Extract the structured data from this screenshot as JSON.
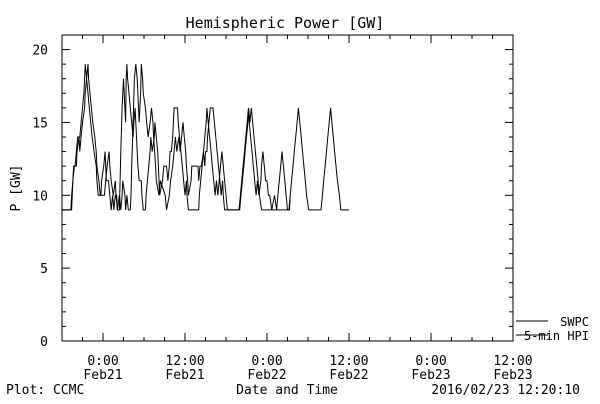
{
  "footer": {
    "plot_credit": "Plot: CCMC",
    "timestamp": "2016/02/23 12:20:10"
  },
  "chart_data": {
    "type": "line",
    "title": "Hemispheric Power [GW]",
    "xlabel": "Date and Time",
    "ylabel": "P [GW]",
    "x_unit": "hours since 2016-02-20 00:00",
    "xlim": [
      18,
      84
    ],
    "ylim": [
      0,
      21
    ],
    "y_ticks": [
      0,
      5,
      10,
      15,
      20
    ],
    "x_ticks": [
      {
        "x": 24,
        "time": "0:00",
        "date": "Feb21"
      },
      {
        "x": 36,
        "time": "12:00",
        "date": "Feb21"
      },
      {
        "x": 48,
        "time": "0:00",
        "date": "Feb22"
      },
      {
        "x": 60,
        "time": "12:00",
        "date": "Feb22"
      },
      {
        "x": 72,
        "time": "0:00",
        "date": "Feb23"
      },
      {
        "x": 84,
        "time": "12:00",
        "date": "Feb23"
      }
    ],
    "grid": false,
    "legend_position": "bottom-right",
    "legend": [
      {
        "label": "SWPC",
        "color": "#000000"
      },
      {
        "label": "5-min HPI",
        "color": "#000000"
      }
    ],
    "series": [
      {
        "name": "SWPC",
        "color": "#000000",
        "points": [
          [
            18.0,
            9
          ],
          [
            19.3,
            9
          ],
          [
            19.4,
            10
          ],
          [
            19.6,
            11
          ],
          [
            19.8,
            12
          ],
          [
            20.1,
            12
          ],
          [
            20.2,
            13
          ],
          [
            20.5,
            14
          ],
          [
            20.6,
            13
          ],
          [
            20.8,
            14
          ],
          [
            21.0,
            15
          ],
          [
            21.3,
            16
          ],
          [
            21.4,
            17
          ],
          [
            21.6,
            18
          ],
          [
            21.8,
            19
          ],
          [
            21.9,
            18
          ],
          [
            22.1,
            17
          ],
          [
            22.3,
            16
          ],
          [
            22.5,
            15
          ],
          [
            22.8,
            14
          ],
          [
            23.0,
            13
          ],
          [
            23.1,
            12
          ],
          [
            23.4,
            11
          ],
          [
            23.6,
            10
          ],
          [
            24.2,
            10
          ],
          [
            24.4,
            11
          ],
          [
            24.6,
            12
          ],
          [
            24.9,
            13
          ],
          [
            25.0,
            12
          ],
          [
            25.2,
            11
          ],
          [
            25.5,
            10
          ],
          [
            25.8,
            11
          ],
          [
            25.9,
            10
          ],
          [
            26.1,
            9
          ],
          [
            26.4,
            10
          ],
          [
            26.6,
            9
          ],
          [
            26.8,
            10
          ],
          [
            26.9,
            11
          ],
          [
            27.2,
            10
          ],
          [
            27.3,
            9
          ],
          [
            27.5,
            10
          ],
          [
            27.7,
            9
          ],
          [
            28.0,
            9
          ],
          [
            28.1,
            10
          ],
          [
            28.2,
            12
          ],
          [
            28.4,
            15
          ],
          [
            28.6,
            18
          ],
          [
            28.8,
            19
          ],
          [
            29.0,
            18
          ],
          [
            29.2,
            16
          ],
          [
            29.3,
            15
          ],
          [
            29.5,
            17
          ],
          [
            29.6,
            19
          ],
          [
            29.8,
            18
          ],
          [
            29.9,
            17
          ],
          [
            30.2,
            16
          ],
          [
            30.4,
            15
          ],
          [
            30.6,
            14
          ],
          [
            30.9,
            15
          ],
          [
            31.1,
            16
          ],
          [
            31.3,
            15
          ],
          [
            31.4,
            14
          ],
          [
            31.7,
            12
          ],
          [
            31.8,
            11
          ],
          [
            32.2,
            10
          ],
          [
            32.4,
            11
          ],
          [
            33.1,
            10
          ],
          [
            33.3,
            9
          ],
          [
            33.7,
            10
          ],
          [
            33.9,
            11
          ],
          [
            34.2,
            12
          ],
          [
            34.4,
            13
          ],
          [
            34.6,
            14
          ],
          [
            34.8,
            13
          ],
          [
            35.1,
            14
          ],
          [
            35.3,
            13
          ],
          [
            35.5,
            14
          ],
          [
            35.7,
            15
          ],
          [
            35.9,
            14
          ],
          [
            36.1,
            13
          ],
          [
            36.2,
            12
          ],
          [
            36.4,
            11
          ],
          [
            36.5,
            10
          ],
          [
            36.9,
            11
          ],
          [
            37.0,
            12
          ],
          [
            37.9,
            12
          ],
          [
            38.0,
            11
          ],
          [
            38.2,
            12
          ],
          [
            38.4,
            12
          ],
          [
            38.7,
            13
          ],
          [
            38.9,
            12
          ],
          [
            39.0,
            13
          ],
          [
            39.2,
            13
          ],
          [
            39.3,
            14
          ],
          [
            39.5,
            15
          ],
          [
            39.7,
            16
          ],
          [
            40.1,
            16
          ],
          [
            40.3,
            15
          ],
          [
            40.5,
            14
          ],
          [
            40.7,
            13
          ],
          [
            40.9,
            12
          ],
          [
            41.1,
            11
          ],
          [
            41.3,
            10
          ],
          [
            41.5,
            11
          ],
          [
            41.6,
            10
          ],
          [
            41.8,
            9
          ],
          [
            42.0,
            9
          ],
          [
            43.9,
            9
          ],
          [
            44.1,
            10
          ],
          [
            44.3,
            11
          ],
          [
            44.5,
            12
          ],
          [
            44.7,
            13
          ],
          [
            44.9,
            14
          ],
          [
            45.1,
            15
          ],
          [
            45.3,
            16
          ],
          [
            45.4,
            15
          ],
          [
            45.6,
            14
          ],
          [
            45.8,
            13
          ],
          [
            46.0,
            12
          ],
          [
            46.2,
            11
          ],
          [
            46.4,
            10
          ],
          [
            46.6,
            11
          ],
          [
            46.8,
            10
          ],
          [
            47.1,
            11
          ],
          [
            47.2,
            12
          ],
          [
            47.4,
            13
          ],
          [
            47.6,
            12
          ],
          [
            47.8,
            11
          ],
          [
            48.0,
            11
          ],
          [
            48.2,
            10
          ],
          [
            48.4,
            10
          ],
          [
            48.7,
            9
          ],
          [
            49.1,
            10
          ],
          [
            49.4,
            9
          ],
          [
            51.2,
            9
          ],
          [
            51.4,
            10
          ],
          [
            51.6,
            11
          ],
          [
            51.8,
            12
          ],
          [
            52.0,
            13
          ],
          [
            52.2,
            14
          ],
          [
            52.4,
            15
          ],
          [
            52.6,
            16
          ],
          [
            52.8,
            15
          ],
          [
            53.0,
            14
          ],
          [
            53.2,
            13
          ],
          [
            53.4,
            12
          ],
          [
            53.6,
            11
          ],
          [
            53.8,
            10
          ],
          [
            54.1,
            9
          ],
          [
            54.4,
            9
          ],
          [
            55.9,
            9
          ],
          [
            56.1,
            10
          ],
          [
            56.3,
            11
          ],
          [
            56.5,
            12
          ],
          [
            56.7,
            13
          ],
          [
            56.9,
            14
          ],
          [
            57.1,
            15
          ],
          [
            57.3,
            16
          ],
          [
            57.5,
            15
          ],
          [
            57.7,
            14
          ],
          [
            57.9,
            13
          ],
          [
            58.1,
            12
          ],
          [
            58.3,
            11
          ],
          [
            58.6,
            10
          ],
          [
            58.8,
            9
          ],
          [
            60.0,
            9
          ]
        ]
      },
      {
        "name": "5-min HPI",
        "color": "#000000",
        "points": [
          [
            18.0,
            9
          ],
          [
            19.4,
            9
          ],
          [
            19.6,
            11
          ],
          [
            19.7,
            12
          ],
          [
            19.9,
            12
          ],
          [
            20.1,
            13
          ],
          [
            20.3,
            14
          ],
          [
            20.6,
            14
          ],
          [
            20.8,
            15
          ],
          [
            21.0,
            16
          ],
          [
            21.2,
            17
          ],
          [
            21.3,
            18
          ],
          [
            21.4,
            19
          ],
          [
            21.6,
            18
          ],
          [
            21.8,
            17
          ],
          [
            22.0,
            16
          ],
          [
            22.2,
            15
          ],
          [
            22.4,
            14
          ],
          [
            22.7,
            13
          ],
          [
            23.0,
            12
          ],
          [
            23.1,
            11
          ],
          [
            23.3,
            10
          ],
          [
            23.7,
            10
          ],
          [
            23.8,
            11
          ],
          [
            24.1,
            12
          ],
          [
            24.3,
            13
          ],
          [
            24.4,
            12
          ],
          [
            24.5,
            11
          ],
          [
            24.8,
            11
          ],
          [
            25.0,
            10
          ],
          [
            25.2,
            9
          ],
          [
            25.4,
            10
          ],
          [
            25.6,
            9
          ],
          [
            25.8,
            10
          ],
          [
            26.0,
            10
          ],
          [
            26.1,
            9
          ],
          [
            26.4,
            9
          ],
          [
            26.5,
            11
          ],
          [
            26.6,
            13
          ],
          [
            26.8,
            16
          ],
          [
            27.0,
            18
          ],
          [
            27.1,
            17
          ],
          [
            27.3,
            15
          ],
          [
            27.4,
            18
          ],
          [
            27.5,
            19
          ],
          [
            27.6,
            18
          ],
          [
            27.8,
            17
          ],
          [
            28.0,
            16
          ],
          [
            28.2,
            15
          ],
          [
            28.4,
            14
          ],
          [
            28.5,
            15
          ],
          [
            28.7,
            16
          ],
          [
            28.8,
            15
          ],
          [
            29.0,
            13
          ],
          [
            29.1,
            12
          ],
          [
            29.3,
            11
          ],
          [
            29.6,
            11
          ],
          [
            29.7,
            10
          ],
          [
            29.9,
            9
          ],
          [
            30.2,
            9
          ],
          [
            30.3,
            10
          ],
          [
            30.5,
            11
          ],
          [
            30.7,
            12
          ],
          [
            30.9,
            13
          ],
          [
            31.0,
            14
          ],
          [
            31.2,
            13
          ],
          [
            31.5,
            14
          ],
          [
            31.6,
            15
          ],
          [
            31.8,
            14
          ],
          [
            32.0,
            13
          ],
          [
            32.1,
            12
          ],
          [
            32.2,
            11
          ],
          [
            32.3,
            10
          ],
          [
            32.7,
            11
          ],
          [
            32.9,
            12
          ],
          [
            33.3,
            12
          ],
          [
            33.5,
            11
          ],
          [
            33.7,
            12
          ],
          [
            33.8,
            13
          ],
          [
            34.0,
            13
          ],
          [
            34.2,
            14
          ],
          [
            34.3,
            15
          ],
          [
            34.4,
            16
          ],
          [
            34.9,
            16
          ],
          [
            35.0,
            15
          ],
          [
            35.2,
            14
          ],
          [
            35.4,
            13
          ],
          [
            35.6,
            12
          ],
          [
            35.8,
            11
          ],
          [
            36.0,
            10
          ],
          [
            36.2,
            11
          ],
          [
            36.3,
            10
          ],
          [
            36.5,
            9
          ],
          [
            38.0,
            9
          ],
          [
            38.1,
            10
          ],
          [
            38.3,
            11
          ],
          [
            38.5,
            12
          ],
          [
            38.7,
            13
          ],
          [
            38.9,
            14
          ],
          [
            39.1,
            15
          ],
          [
            39.2,
            16
          ],
          [
            39.4,
            15
          ],
          [
            39.6,
            14
          ],
          [
            39.8,
            13
          ],
          [
            40.0,
            12
          ],
          [
            40.2,
            11
          ],
          [
            40.4,
            10
          ],
          [
            40.6,
            11
          ],
          [
            40.8,
            10
          ],
          [
            41.0,
            11
          ],
          [
            41.2,
            12
          ],
          [
            41.4,
            13
          ],
          [
            41.6,
            12
          ],
          [
            41.8,
            11
          ],
          [
            42.0,
            10
          ],
          [
            42.2,
            9
          ],
          [
            44.0,
            9
          ],
          [
            44.2,
            10
          ],
          [
            44.4,
            11
          ],
          [
            44.6,
            12
          ],
          [
            44.8,
            13
          ],
          [
            45.0,
            14
          ],
          [
            45.2,
            15
          ],
          [
            45.3,
            16
          ],
          [
            45.5,
            15
          ],
          [
            45.7,
            16
          ],
          [
            45.9,
            15
          ],
          [
            46.1,
            14
          ],
          [
            46.3,
            13
          ],
          [
            46.5,
            12
          ],
          [
            46.7,
            11
          ],
          [
            46.9,
            10
          ],
          [
            47.2,
            9
          ],
          [
            49.4,
            9
          ],
          [
            49.6,
            10
          ],
          [
            49.8,
            11
          ],
          [
            50.0,
            12
          ],
          [
            50.2,
            13
          ],
          [
            50.4,
            12
          ],
          [
            50.6,
            11
          ],
          [
            50.8,
            10
          ],
          [
            51.0,
            9
          ],
          [
            51.3,
            9
          ],
          [
            51.4,
            10
          ]
        ]
      }
    ]
  }
}
